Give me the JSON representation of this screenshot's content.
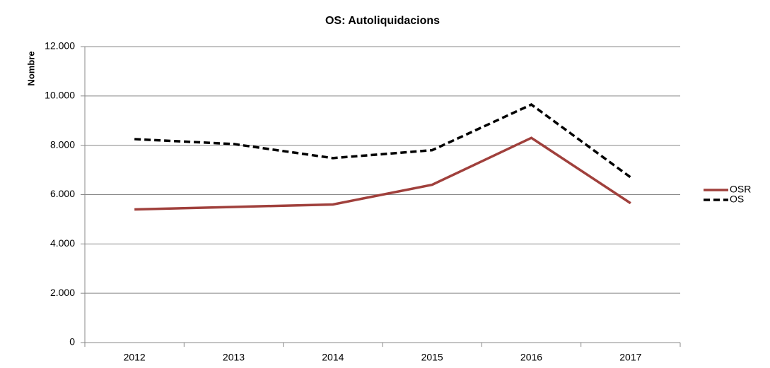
{
  "chart_data": {
    "type": "line",
    "title": "OS: Autoliquidacions",
    "y_label": "Nombre",
    "categories": [
      "2012",
      "2013",
      "2014",
      "2015",
      "2016",
      "2017"
    ],
    "series": [
      {
        "name": "OSR",
        "color": "#a0403c",
        "dash": false,
        "values": [
          5400,
          5500,
          5600,
          6400,
          8300,
          5650
        ]
      },
      {
        "name": "OS",
        "color": "#000000",
        "dash": true,
        "values": [
          8250,
          8050,
          7480,
          7800,
          9650,
          6700
        ]
      }
    ],
    "ylim": [
      0,
      12000
    ],
    "yticks": [
      0,
      {
        "value": 2000,
        "label": "2.000"
      },
      {
        "value": 4000,
        "label": "4.000"
      },
      {
        "value": 6000,
        "label": "6.000"
      },
      {
        "value": 8000,
        "label": "8.000"
      },
      {
        "value": 10000,
        "label": "10.000"
      },
      {
        "value": 12000,
        "label": "12.000"
      }
    ],
    "grid": true,
    "legend": "right"
  }
}
